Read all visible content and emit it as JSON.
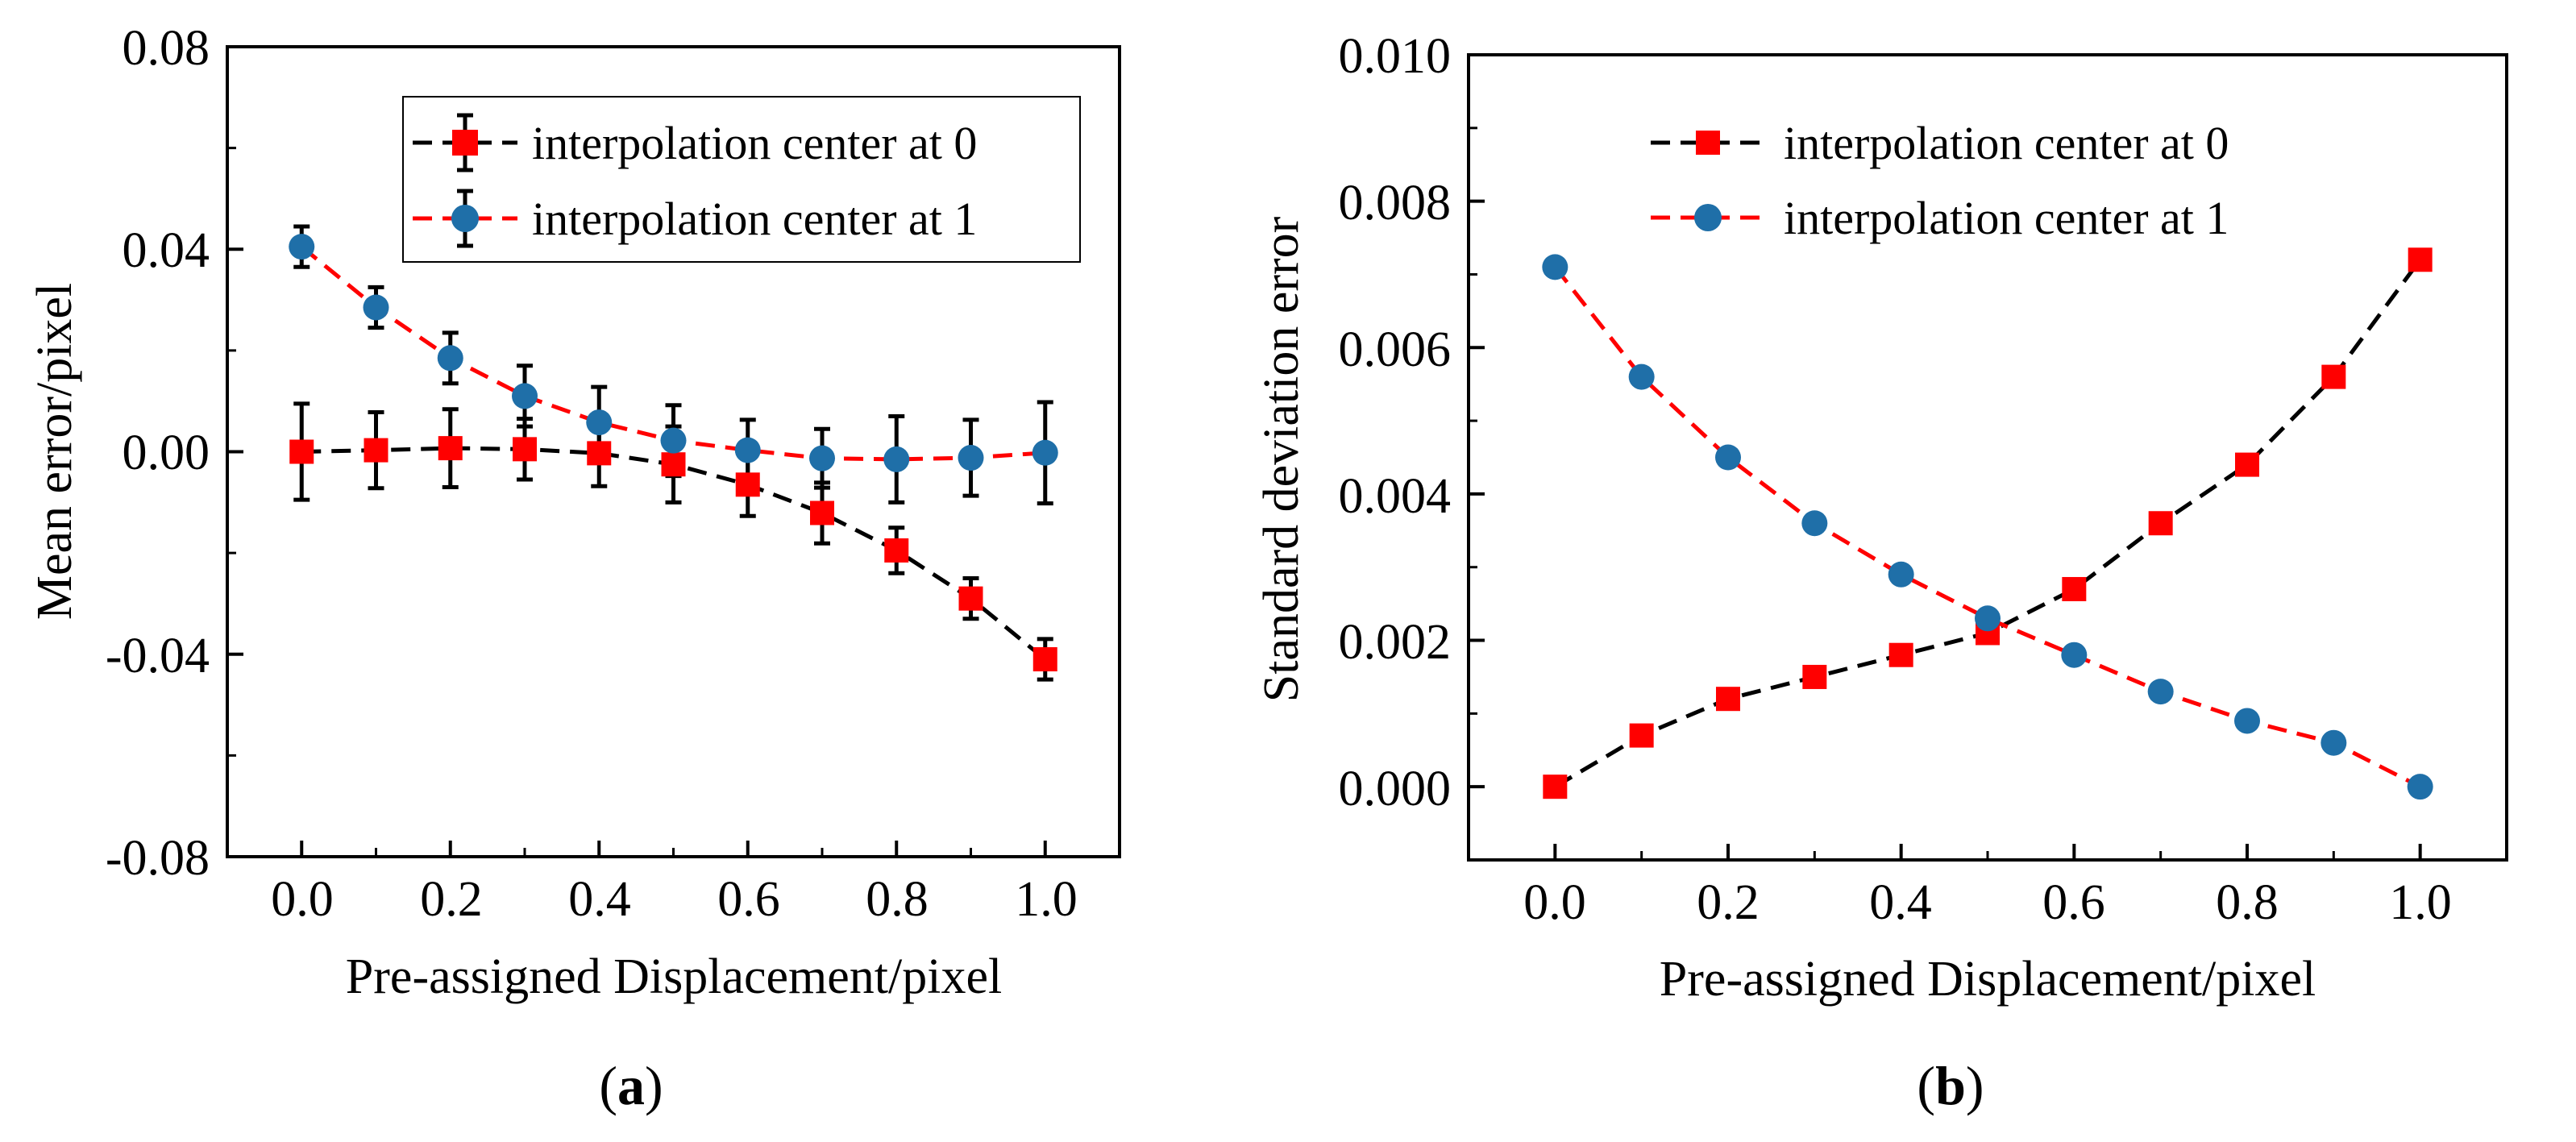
{
  "panels": [
    {
      "label_prefix": "(",
      "label_letter": "a",
      "label_suffix": ")"
    },
    {
      "label_prefix": "(",
      "label_letter": "b",
      "label_suffix": ")"
    }
  ],
  "chart_data": [
    {
      "type": "line",
      "xlabel": "Pre-assigned Displacement/pixel",
      "ylabel": "Mean error/pixel",
      "xlim": [
        -0.1,
        1.1
      ],
      "ylim": [
        -0.08,
        0.08
      ],
      "xticks": [
        "0.0",
        "0.2",
        "0.4",
        "0.6",
        "0.8",
        "1.0"
      ],
      "yticks": [
        "-0.08",
        "-0.04",
        "0.00",
        "0.04",
        "0.08"
      ],
      "grid": false,
      "legend_position": "top-right",
      "x": [
        0.0,
        0.1,
        0.2,
        0.3,
        0.4,
        0.5,
        0.6,
        0.7,
        0.8,
        0.9,
        1.0
      ],
      "series": [
        {
          "name": "interpolation center at 0",
          "marker": "square",
          "marker_color": "#ff0000",
          "line_color": "#000000",
          "line_style": "dashed",
          "values": [
            0.0,
            0.0003,
            0.0007,
            0.0005,
            -0.0003,
            -0.0025,
            -0.0065,
            -0.0121,
            -0.0195,
            -0.029,
            -0.041
          ],
          "error": [
            0.0095,
            0.0075,
            0.0077,
            0.006,
            0.0065,
            0.0075,
            0.0062,
            0.006,
            0.0045,
            0.004,
            0.004
          ]
        },
        {
          "name": "interpolation center at 1",
          "marker": "circle",
          "marker_color": "#1f6fa8",
          "line_color": "#ff0000",
          "line_style": "dashed",
          "values": [
            0.0405,
            0.0285,
            0.0185,
            0.011,
            0.0058,
            0.0022,
            0.0003,
            -0.0013,
            -0.0015,
            -0.0012,
            -0.0002
          ],
          "error": [
            0.004,
            0.004,
            0.005,
            0.006,
            0.007,
            0.007,
            0.006,
            0.0058,
            0.0085,
            0.0075,
            0.01
          ]
        }
      ]
    },
    {
      "type": "line",
      "xlabel": "Pre-assigned Displacement/pixel",
      "ylabel": "Standard deviation error",
      "xlim": [
        -0.1,
        1.1
      ],
      "ylim": [
        -0.001,
        0.01
      ],
      "xticks": [
        "0.0",
        "0.2",
        "0.4",
        "0.6",
        "0.8",
        "1.0"
      ],
      "yticks": [
        "0.000",
        "0.002",
        "0.004",
        "0.006",
        "0.008",
        "0.010"
      ],
      "grid": false,
      "legend_position": "top-right",
      "x": [
        0.0,
        0.1,
        0.2,
        0.3,
        0.4,
        0.5,
        0.6,
        0.7,
        0.8,
        0.9,
        1.0
      ],
      "series": [
        {
          "name": "interpolation center at 0",
          "marker": "square",
          "marker_color": "#ff0000",
          "line_color": "#000000",
          "line_style": "dashed",
          "values": [
            0.0,
            0.0007,
            0.0012,
            0.0015,
            0.0018,
            0.0021,
            0.0027,
            0.0036,
            0.0044,
            0.0056,
            0.0072
          ]
        },
        {
          "name": "interpolation center at 1",
          "marker": "circle",
          "marker_color": "#1f6fa8",
          "line_color": "#ff0000",
          "line_style": "dashed",
          "values": [
            0.0071,
            0.0056,
            0.0045,
            0.0036,
            0.0029,
            0.0023,
            0.0018,
            0.0013,
            0.0009,
            0.0006,
            0.0
          ]
        }
      ]
    }
  ]
}
